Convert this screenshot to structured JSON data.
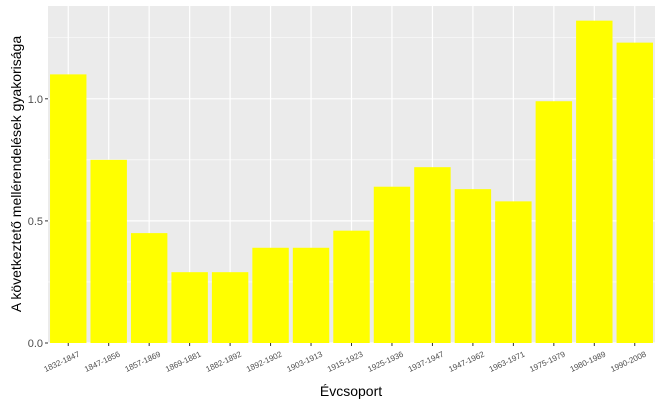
{
  "chart_data": {
    "type": "bar",
    "categories": [
      "1832-1847",
      "1847-1856",
      "1857-1869",
      "1869-1881",
      "1882-1892",
      "1892-1902",
      "1903-1913",
      "1915-1923",
      "1925-1936",
      "1937-1947",
      "1947-1962",
      "1963-1971",
      "1975-1979",
      "1980-1989",
      "1990-2008"
    ],
    "values": [
      1.1,
      0.75,
      0.45,
      0.29,
      0.29,
      0.39,
      0.39,
      0.46,
      0.64,
      0.72,
      0.63,
      0.58,
      0.99,
      1.32,
      1.23
    ],
    "title": "",
    "xlabel": "Évcsoport",
    "ylabel": "A következtető mellérendelések gyakorisága",
    "ylim": [
      0,
      1.38
    ],
    "yticks": [
      0.0,
      0.5,
      1.0
    ],
    "ytick_labels": [
      "0.0",
      "0.5",
      "1.0"
    ],
    "grid": true,
    "legend": "none",
    "bar_color": "#ffff00",
    "panel_color": "#ebebeb",
    "grid_color": "#ffffff"
  }
}
